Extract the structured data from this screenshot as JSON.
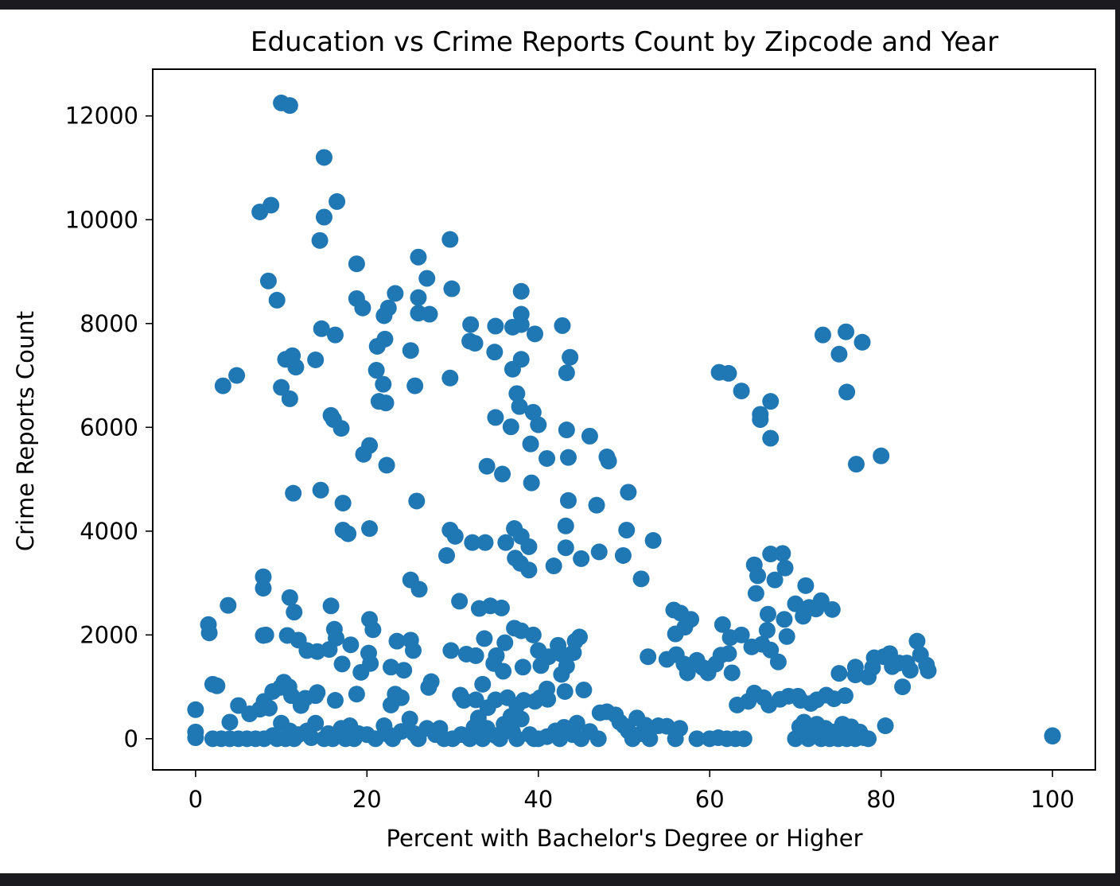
{
  "chart_data": {
    "type": "scatter",
    "title": "Education vs Crime Reports Count by Zipcode and Year",
    "xlabel": "Percent with Bachelor's Degree or Higher",
    "ylabel": "Crime Reports Count",
    "xlim": [
      -5,
      105
    ],
    "ylim": [
      -600,
      12900
    ],
    "xticks": [
      0,
      20,
      40,
      60,
      80,
      100
    ],
    "yticks": [
      0,
      2000,
      4000,
      6000,
      8000,
      10000,
      12000
    ],
    "grid": false,
    "color": "#1f77b4",
    "points": [
      [
        10,
        12250
      ],
      [
        11,
        12200
      ],
      [
        15,
        11200
      ],
      [
        16.5,
        10350
      ],
      [
        7.5,
        10150
      ],
      [
        8.8,
        10280
      ],
      [
        15,
        10050
      ],
      [
        14.5,
        9600
      ],
      [
        8.5,
        8820
      ],
      [
        9.5,
        8450
      ],
      [
        18.8,
        9150
      ],
      [
        18.8,
        8480
      ],
      [
        19.5,
        8300
      ],
      [
        23.3,
        8580
      ],
      [
        22.5,
        8300
      ],
      [
        22,
        8150
      ],
      [
        26,
        9280
      ],
      [
        27,
        8870
      ],
      [
        26,
        8500
      ],
      [
        26,
        8200
      ],
      [
        27.3,
        8180
      ],
      [
        29.7,
        9620
      ],
      [
        29.9,
        8670
      ],
      [
        14.7,
        7900
      ],
      [
        16.3,
        7780
      ],
      [
        10.5,
        7310
      ],
      [
        11.3,
        7380
      ],
      [
        11.7,
        7160
      ],
      [
        14,
        7300
      ],
      [
        10,
        6770
      ],
      [
        11,
        6550
      ],
      [
        3.2,
        6800
      ],
      [
        4.8,
        7000
      ],
      [
        21.2,
        7560
      ],
      [
        22.1,
        7700
      ],
      [
        25.1,
        7480
      ],
      [
        21.1,
        7100
      ],
      [
        21.9,
        6830
      ],
      [
        21.4,
        6500
      ],
      [
        22.2,
        6470
      ],
      [
        25.6,
        6800
      ],
      [
        29.7,
        6950
      ],
      [
        15.8,
        6230
      ],
      [
        16.1,
        6150
      ],
      [
        17,
        5980
      ],
      [
        20.3,
        5650
      ],
      [
        19.6,
        5480
      ],
      [
        22.3,
        5270
      ],
      [
        11.4,
        4730
      ],
      [
        14.6,
        4790
      ],
      [
        17.2,
        4540
      ],
      [
        17.2,
        4020
      ],
      [
        17.8,
        3950
      ],
      [
        20.3,
        4050
      ],
      [
        25.8,
        4580
      ],
      [
        32.1,
        7980
      ],
      [
        32,
        7660
      ],
      [
        32.6,
        7620
      ],
      [
        35,
        7950
      ],
      [
        37,
        7930
      ],
      [
        38,
        8180
      ],
      [
        38,
        7980
      ],
      [
        38,
        8620
      ],
      [
        39.6,
        7800
      ],
      [
        34.9,
        7450
      ],
      [
        37,
        7120
      ],
      [
        38,
        7310
      ],
      [
        42.8,
        7960
      ],
      [
        43.7,
        7350
      ],
      [
        43.3,
        7050
      ],
      [
        37.5,
        6650
      ],
      [
        37.8,
        6400
      ],
      [
        39.4,
        6290
      ],
      [
        40,
        6050
      ],
      [
        35,
        6190
      ],
      [
        36.8,
        6010
      ],
      [
        39.1,
        5680
      ],
      [
        41,
        5400
      ],
      [
        34,
        5250
      ],
      [
        35.8,
        5100
      ],
      [
        39.2,
        4930
      ],
      [
        43.3,
        5950
      ],
      [
        43.5,
        5420
      ],
      [
        46,
        5830
      ],
      [
        48,
        5430
      ],
      [
        48.2,
        5350
      ],
      [
        43.5,
        4590
      ],
      [
        46.8,
        4500
      ],
      [
        43.2,
        4100
      ],
      [
        29.7,
        4020
      ],
      [
        30.3,
        3900
      ],
      [
        29.3,
        3530
      ],
      [
        32.3,
        3780
      ],
      [
        33.8,
        3780
      ],
      [
        36.2,
        3780
      ],
      [
        37.2,
        4050
      ],
      [
        38,
        3900
      ],
      [
        37.3,
        3480
      ],
      [
        37.9,
        3380
      ],
      [
        38.9,
        3250
      ],
      [
        38.9,
        3700
      ],
      [
        41.8,
        3330
      ],
      [
        43.2,
        3680
      ],
      [
        45,
        3470
      ],
      [
        47.1,
        3600
      ],
      [
        50.5,
        4750
      ],
      [
        50.3,
        4020
      ],
      [
        49.9,
        3530
      ],
      [
        53.4,
        3820
      ],
      [
        52,
        3080
      ],
      [
        25.1,
        3060
      ],
      [
        26.1,
        2880
      ],
      [
        30.8,
        2650
      ],
      [
        7.9,
        3120
      ],
      [
        7.9,
        2900
      ],
      [
        11,
        2720
      ],
      [
        11.5,
        2440
      ],
      [
        3.8,
        2570
      ],
      [
        1.5,
        2200
      ],
      [
        1.6,
        2040
      ],
      [
        7.9,
        1990
      ],
      [
        8.2,
        2000
      ],
      [
        15.8,
        2560
      ],
      [
        16.2,
        2110
      ],
      [
        16.4,
        1940
      ],
      [
        20.3,
        2300
      ],
      [
        20.7,
        2100
      ],
      [
        10.7,
        1990
      ],
      [
        12,
        1900
      ],
      [
        13,
        1700
      ],
      [
        14.2,
        1680
      ],
      [
        15.6,
        1720
      ],
      [
        17.1,
        1440
      ],
      [
        18.1,
        1810
      ],
      [
        20.2,
        1650
      ],
      [
        20.4,
        1450
      ],
      [
        19.3,
        1280
      ],
      [
        23.5,
        1880
      ],
      [
        25.1,
        1900
      ],
      [
        25.4,
        1700
      ],
      [
        22.8,
        1380
      ],
      [
        24.3,
        1320
      ],
      [
        29.8,
        1700
      ],
      [
        31.6,
        1630
      ],
      [
        32.7,
        1600
      ],
      [
        33.1,
        2510
      ],
      [
        34.4,
        2560
      ],
      [
        35.7,
        2520
      ],
      [
        33.7,
        1930
      ],
      [
        35.1,
        1600
      ],
      [
        35.9,
        1300
      ],
      [
        34.8,
        1450
      ],
      [
        36.1,
        1850
      ],
      [
        37.2,
        2130
      ],
      [
        38,
        2080
      ],
      [
        39.4,
        2000
      ],
      [
        38.2,
        1380
      ],
      [
        40,
        1700
      ],
      [
        40.3,
        1410
      ],
      [
        41.2,
        1580
      ],
      [
        42.3,
        1800
      ],
      [
        42.7,
        1630
      ],
      [
        44.1,
        1660
      ],
      [
        44.8,
        1960
      ],
      [
        44.3,
        1880
      ],
      [
        43.3,
        1400
      ],
      [
        42.7,
        1240
      ],
      [
        45.3,
        940
      ],
      [
        41,
        960
      ],
      [
        43.1,
        910
      ],
      [
        2,
        1050
      ],
      [
        2.5,
        1020
      ],
      [
        5,
        640
      ],
      [
        6.3,
        480
      ],
      [
        7.5,
        570
      ],
      [
        8,
        720
      ],
      [
        8.6,
        590
      ],
      [
        9,
        910
      ],
      [
        9.9,
        990
      ],
      [
        10.3,
        1090
      ],
      [
        10.9,
        1000
      ],
      [
        11.2,
        830
      ],
      [
        12.3,
        640
      ],
      [
        12.8,
        780
      ],
      [
        14,
        830
      ],
      [
        14.2,
        890
      ],
      [
        16.3,
        740
      ],
      [
        18.8,
        860
      ],
      [
        22.8,
        650
      ],
      [
        23.3,
        860
      ],
      [
        24,
        790
      ],
      [
        27.2,
        990
      ],
      [
        27.5,
        1100
      ],
      [
        30.9,
        840
      ],
      [
        31.3,
        740
      ],
      [
        32.7,
        750
      ],
      [
        33.5,
        1050
      ],
      [
        35,
        750
      ],
      [
        36.4,
        790
      ],
      [
        37.5,
        640
      ],
      [
        38.3,
        740
      ],
      [
        39.6,
        720
      ],
      [
        40.2,
        790
      ],
      [
        41.1,
        760
      ],
      [
        34.1,
        600
      ],
      [
        36.8,
        430
      ],
      [
        37.3,
        450
      ],
      [
        52.8,
        1580
      ],
      [
        55,
        1530
      ],
      [
        55.8,
        2480
      ],
      [
        56,
        2020
      ],
      [
        56.6,
        2420
      ],
      [
        57.1,
        2150
      ],
      [
        57.8,
        2300
      ],
      [
        56.1,
        1620
      ],
      [
        57,
        1440
      ],
      [
        57.4,
        1270
      ],
      [
        58.5,
        1510
      ],
      [
        59.2,
        1370
      ],
      [
        59.8,
        1270
      ],
      [
        60.7,
        1440
      ],
      [
        61.3,
        1610
      ],
      [
        61.5,
        2200
      ],
      [
        62.2,
        1640
      ],
      [
        62.4,
        1950
      ],
      [
        62.6,
        1270
      ],
      [
        63.7,
        2000
      ],
      [
        64.9,
        1770
      ],
      [
        65.2,
        3350
      ],
      [
        65.6,
        3140
      ],
      [
        65.4,
        2800
      ],
      [
        66.8,
        2400
      ],
      [
        66.7,
        2090
      ],
      [
        66.1,
        1820
      ],
      [
        67.1,
        3560
      ],
      [
        67.6,
        3060
      ],
      [
        68.5,
        3570
      ],
      [
        68.8,
        3290
      ],
      [
        68.7,
        2300
      ],
      [
        69,
        1970
      ],
      [
        67.1,
        1710
      ],
      [
        68,
        1480
      ],
      [
        70,
        2600
      ],
      [
        70.9,
        2360
      ],
      [
        71.2,
        2950
      ],
      [
        71.6,
        2530
      ],
      [
        72.4,
        2500
      ],
      [
        73,
        2660
      ],
      [
        74.3,
        2490
      ],
      [
        63.2,
        650
      ],
      [
        64.5,
        720
      ],
      [
        65.2,
        880
      ],
      [
        66.3,
        790
      ],
      [
        66.9,
        650
      ],
      [
        68.2,
        760
      ],
      [
        69.2,
        820
      ],
      [
        70.3,
        820
      ],
      [
        70.6,
        740
      ],
      [
        71.8,
        680
      ],
      [
        72.5,
        750
      ],
      [
        73.6,
        840
      ],
      [
        74.5,
        770
      ],
      [
        75.1,
        1260
      ],
      [
        75.8,
        830
      ],
      [
        77,
        1380
      ],
      [
        77,
        1230
      ],
      [
        78.5,
        1190
      ],
      [
        79,
        1370
      ],
      [
        79.2,
        1560
      ],
      [
        80.3,
        1580
      ],
      [
        81,
        1640
      ],
      [
        81.3,
        1390
      ],
      [
        82.1,
        1460
      ],
      [
        82.5,
        1000
      ],
      [
        83,
        1460
      ],
      [
        83.4,
        1320
      ],
      [
        84.2,
        1880
      ],
      [
        84.6,
        1620
      ],
      [
        85.3,
        1420
      ],
      [
        85.5,
        1310
      ],
      [
        61.1,
        7060
      ],
      [
        62.2,
        7040
      ],
      [
        63.7,
        6700
      ],
      [
        65.9,
        6250
      ],
      [
        65.9,
        6150
      ],
      [
        67.1,
        6500
      ],
      [
        67.1,
        5790
      ],
      [
        73.2,
        7780
      ],
      [
        75.9,
        7840
      ],
      [
        77.8,
        7640
      ],
      [
        75.1,
        7410
      ],
      [
        76,
        6680
      ],
      [
        77.1,
        5290
      ],
      [
        80,
        5450
      ],
      [
        100,
        50
      ],
      [
        100,
        60
      ],
      [
        0,
        560
      ],
      [
        0,
        130
      ],
      [
        0,
        20
      ],
      [
        2,
        0
      ],
      [
        3,
        0
      ],
      [
        4,
        320
      ],
      [
        4,
        0
      ],
      [
        5,
        0
      ],
      [
        6,
        0
      ],
      [
        7,
        0
      ],
      [
        8,
        0
      ],
      [
        9,
        60
      ],
      [
        9.5,
        0
      ],
      [
        10,
        300
      ],
      [
        10.5,
        0
      ],
      [
        11,
        150
      ],
      [
        11.5,
        0
      ],
      [
        12,
        80
      ],
      [
        13,
        150
      ],
      [
        13.5,
        20
      ],
      [
        14,
        300
      ],
      [
        15,
        0
      ],
      [
        15.5,
        100
      ],
      [
        16,
        0
      ],
      [
        17,
        200
      ],
      [
        17.5,
        0
      ],
      [
        18,
        250
      ],
      [
        18.5,
        0
      ],
      [
        19,
        100
      ],
      [
        20,
        80
      ],
      [
        21,
        0
      ],
      [
        22,
        250
      ],
      [
        22.5,
        80
      ],
      [
        23,
        0
      ],
      [
        24,
        140
      ],
      [
        25,
        380
      ],
      [
        25.5,
        100
      ],
      [
        26,
        0
      ],
      [
        27,
        200
      ],
      [
        28,
        80
      ],
      [
        28.5,
        200
      ],
      [
        29,
        0
      ],
      [
        30,
        0
      ],
      [
        31,
        80
      ],
      [
        32,
        0
      ],
      [
        32.5,
        220
      ],
      [
        33,
        400
      ],
      [
        33.5,
        0
      ],
      [
        34,
        200
      ],
      [
        35,
        60
      ],
      [
        35.5,
        0
      ],
      [
        36,
        280
      ],
      [
        37,
        130
      ],
      [
        37.5,
        0
      ],
      [
        38,
        380
      ],
      [
        39,
        80
      ],
      [
        39.5,
        0
      ],
      [
        40,
        0
      ],
      [
        41,
        40
      ],
      [
        42,
        150
      ],
      [
        42.5,
        0
      ],
      [
        43,
        220
      ],
      [
        44,
        80
      ],
      [
        44.5,
        300
      ],
      [
        45,
        0
      ],
      [
        46,
        140
      ],
      [
        47,
        0
      ],
      [
        47.2,
        500
      ],
      [
        48,
        520
      ],
      [
        49,
        460
      ],
      [
        49.5,
        320
      ],
      [
        50,
        250
      ],
      [
        50.5,
        150
      ],
      [
        51,
        0
      ],
      [
        51.5,
        400
      ],
      [
        52,
        100
      ],
      [
        52.5,
        260
      ],
      [
        53,
        0
      ],
      [
        54,
        250
      ],
      [
        55,
        240
      ],
      [
        56,
        0
      ],
      [
        56.5,
        200
      ],
      [
        58.5,
        0
      ],
      [
        60,
        0
      ],
      [
        61,
        20
      ],
      [
        62,
        0
      ],
      [
        63,
        0
      ],
      [
        64,
        0
      ],
      [
        70,
        0
      ],
      [
        70.5,
        230
      ],
      [
        71,
        320
      ],
      [
        71.5,
        0
      ],
      [
        72,
        160
      ],
      [
        72.5,
        280
      ],
      [
        73,
        0
      ],
      [
        73.5,
        200
      ],
      [
        74,
        0
      ],
      [
        74.5,
        130
      ],
      [
        75,
        0
      ],
      [
        75.5,
        280
      ],
      [
        76,
        0
      ],
      [
        76.5,
        230
      ],
      [
        77,
        0
      ],
      [
        77.5,
        130
      ],
      [
        78,
        20
      ],
      [
        78.5,
        0
      ],
      [
        80.5,
        250
      ]
    ]
  }
}
